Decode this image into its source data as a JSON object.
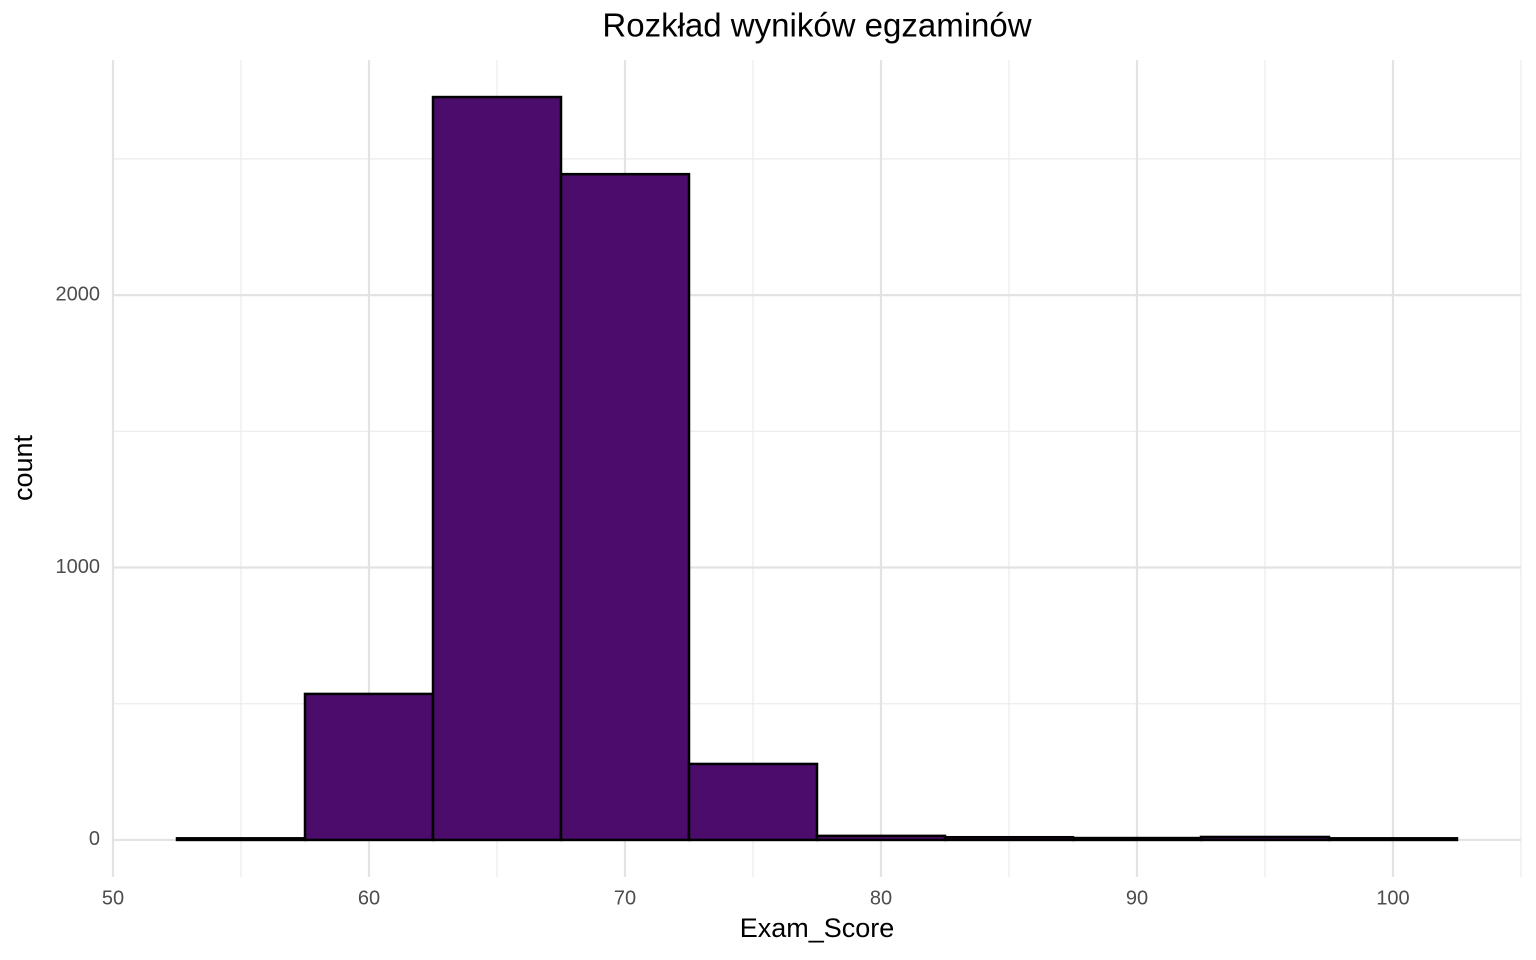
{
  "chart_data": {
    "type": "histogram",
    "title": "Rozkład wyników egzaminów",
    "x_label": "Exam_Score",
    "y_label": "count",
    "bins": [
      52.5,
      57.5,
      62.5,
      67.5,
      72.5,
      77.5,
      82.5,
      87.5,
      92.5,
      97.5,
      102.5
    ],
    "values": [
      6,
      536,
      2727,
      2444,
      279,
      15,
      10,
      7,
      11,
      6
    ],
    "color": "#4b0c6b",
    "edge_color": "#000000",
    "xlim": [
      50,
      105
    ],
    "xticks": [
      50,
      60,
      70,
      80,
      90,
      100
    ],
    "x_minor_gridlines": [
      55,
      65,
      75,
      85,
      95,
      105
    ],
    "ylim": [
      -136,
      2863
    ],
    "yticks": [
      0,
      1000,
      2000
    ],
    "y_minor_gridlines": [
      500,
      1500,
      2500
    ],
    "grid": true
  }
}
